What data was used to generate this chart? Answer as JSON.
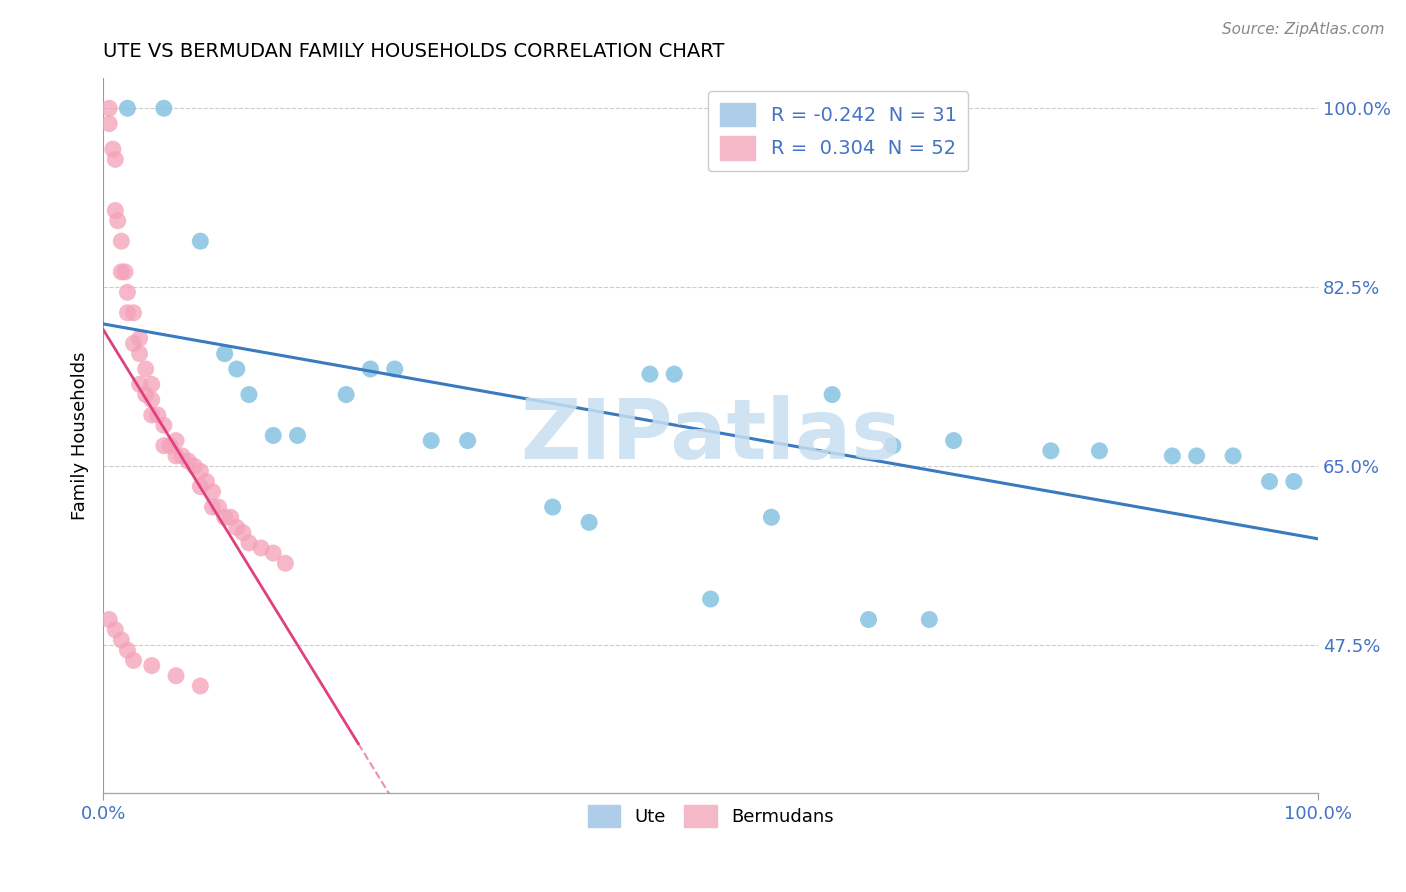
{
  "title": "UTE VS BERMUDAN FAMILY HOUSEHOLDS CORRELATION CHART",
  "source": "Source: ZipAtlas.com",
  "ylabel": "Family Households",
  "xlim": [
    0.0,
    1.0
  ],
  "ylim": [
    0.33,
    1.03
  ],
  "ytick_vals": [
    0.475,
    0.65,
    0.825,
    1.0
  ],
  "ytick_labels": [
    "47.5%",
    "65.0%",
    "82.5%",
    "100.0%"
  ],
  "ute_R": "-0.242",
  "ute_N": "31",
  "bermuda_R": "0.304",
  "bermuda_N": "52",
  "ute_color": "#7fbfdf",
  "bermuda_color": "#f4a0b8",
  "ute_line_color": "#3a7abf",
  "bermuda_line_color": "#e04080",
  "watermark_color": "#c8dff0",
  "ute_x": [
    0.02,
    0.05,
    0.08,
    0.1,
    0.11,
    0.12,
    0.14,
    0.16,
    0.2,
    0.22,
    0.24,
    0.27,
    0.3,
    0.45,
    0.47,
    0.6,
    0.65,
    0.7,
    0.78,
    0.82,
    0.88,
    0.9,
    0.93,
    0.96,
    0.98,
    0.55,
    0.37,
    0.4,
    0.5,
    0.63,
    0.68
  ],
  "ute_y": [
    1.0,
    1.0,
    0.87,
    0.76,
    0.745,
    0.72,
    0.68,
    0.68,
    0.72,
    0.745,
    0.745,
    0.675,
    0.675,
    0.74,
    0.74,
    0.72,
    0.67,
    0.675,
    0.665,
    0.665,
    0.66,
    0.66,
    0.66,
    0.635,
    0.635,
    0.6,
    0.61,
    0.595,
    0.52,
    0.5,
    0.5
  ],
  "ber_x": [
    0.005,
    0.005,
    0.008,
    0.01,
    0.01,
    0.012,
    0.015,
    0.015,
    0.018,
    0.02,
    0.02,
    0.025,
    0.025,
    0.03,
    0.03,
    0.03,
    0.035,
    0.035,
    0.04,
    0.04,
    0.04,
    0.045,
    0.05,
    0.05,
    0.055,
    0.06,
    0.06,
    0.065,
    0.07,
    0.075,
    0.08,
    0.08,
    0.085,
    0.09,
    0.09,
    0.095,
    0.1,
    0.105,
    0.11,
    0.115,
    0.12,
    0.13,
    0.14,
    0.15,
    0.005,
    0.01,
    0.015,
    0.02,
    0.025,
    0.04,
    0.06,
    0.08
  ],
  "ber_y": [
    1.0,
    0.985,
    0.96,
    0.95,
    0.9,
    0.89,
    0.87,
    0.84,
    0.84,
    0.82,
    0.8,
    0.8,
    0.77,
    0.775,
    0.76,
    0.73,
    0.745,
    0.72,
    0.73,
    0.715,
    0.7,
    0.7,
    0.69,
    0.67,
    0.67,
    0.675,
    0.66,
    0.66,
    0.655,
    0.65,
    0.645,
    0.63,
    0.635,
    0.625,
    0.61,
    0.61,
    0.6,
    0.6,
    0.59,
    0.585,
    0.575,
    0.57,
    0.565,
    0.555,
    0.5,
    0.49,
    0.48,
    0.47,
    0.46,
    0.455,
    0.445,
    0.435
  ],
  "ber_trend_x0": 0.0,
  "ber_trend_x1": 0.21,
  "ute_trend_x0": 0.0,
  "ute_trend_x1": 1.0
}
